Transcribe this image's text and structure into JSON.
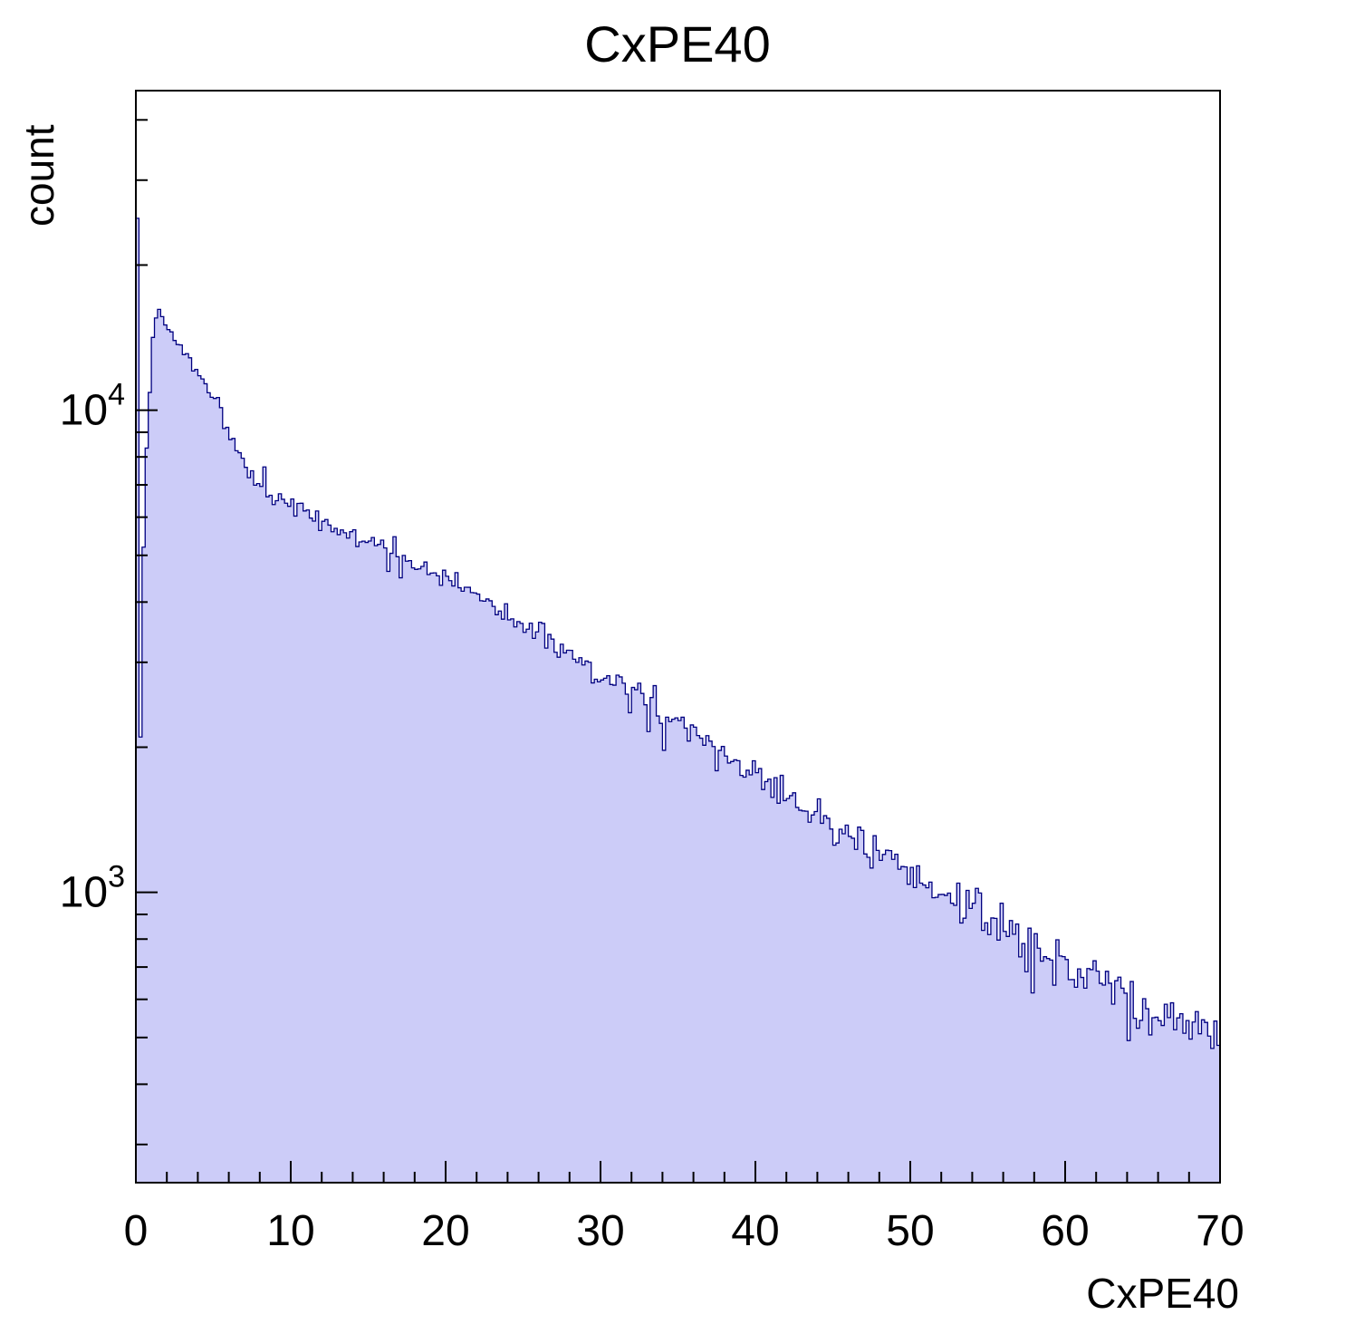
{
  "chart_data": {
    "type": "histogram",
    "title": "CxPE40",
    "xlabel": "CxPE40",
    "ylabel": "count",
    "xlim": [
      0,
      70
    ],
    "ylim": [
      250,
      46000
    ],
    "yscale": "log",
    "n_bins": 350,
    "bin_width": 0.2,
    "x_ticks": [
      0,
      10,
      20,
      30,
      40,
      50,
      60,
      70
    ],
    "x_minor_step": 2,
    "y_tick_base": "10",
    "y_major_ticks_exp": [
      3,
      4
    ],
    "fill_color": "#ccccf8",
    "line_color": "#000080",
    "frame_color": "#000000",
    "noise_coeff": 1.6,
    "noise_seed": 42,
    "anchors": [
      [
        0.1,
        25000
      ],
      [
        0.3,
        2100
      ],
      [
        0.5,
        5200
      ],
      [
        0.7,
        8200
      ],
      [
        0.9,
        11000
      ],
      [
        1.1,
        14000
      ],
      [
        1.4,
        16500
      ],
      [
        1.7,
        15800
      ],
      [
        2.0,
        15000
      ],
      [
        2.5,
        14200
      ],
      [
        3.0,
        13400
      ],
      [
        3.5,
        12700
      ],
      [
        4.0,
        11900
      ],
      [
        4.5,
        11200
      ],
      [
        5.0,
        10400
      ],
      [
        5.5,
        10050
      ],
      [
        6.0,
        9000
      ],
      [
        6.5,
        8300
      ],
      [
        7.0,
        7800
      ],
      [
        7.5,
        7300
      ],
      [
        8.0,
        7000
      ],
      [
        9.0,
        6600
      ],
      [
        10,
        6300
      ],
      [
        11,
        6100
      ],
      [
        12,
        5900
      ],
      [
        13,
        5700
      ],
      [
        14,
        5500
      ],
      [
        15,
        5300
      ],
      [
        16,
        5100
      ],
      [
        17,
        4950
      ],
      [
        18,
        4800
      ],
      [
        19,
        4650
      ],
      [
        20,
        4500
      ],
      [
        21,
        4350
      ],
      [
        22,
        4150
      ],
      [
        23,
        3950
      ],
      [
        24,
        3750
      ],
      [
        25,
        3550
      ],
      [
        26,
        3400
      ],
      [
        27,
        3250
      ],
      [
        28,
        3100
      ],
      [
        29,
        2950
      ],
      [
        30,
        2800
      ],
      [
        31,
        2700
      ],
      [
        32,
        2600
      ],
      [
        33,
        2500
      ],
      [
        34,
        2380
      ],
      [
        35,
        2250
      ],
      [
        36,
        2130
      ],
      [
        37,
        2030
      ],
      [
        38,
        1930
      ],
      [
        39,
        1840
      ],
      [
        40,
        1750
      ],
      [
        41,
        1670
      ],
      [
        42,
        1590
      ],
      [
        43,
        1510
      ],
      [
        44,
        1440
      ],
      [
        45,
        1370
      ],
      [
        46,
        1300
      ],
      [
        47,
        1250
      ],
      [
        48,
        1190
      ],
      [
        49,
        1140
      ],
      [
        50,
        1090
      ],
      [
        51,
        1040
      ],
      [
        52,
        1000
      ],
      [
        53,
        955
      ],
      [
        54,
        915
      ],
      [
        55,
        875
      ],
      [
        56,
        840
      ],
      [
        57,
        805
      ],
      [
        58,
        775
      ],
      [
        59,
        745
      ],
      [
        60,
        715
      ],
      [
        61,
        685
      ],
      [
        62,
        660
      ],
      [
        63,
        635
      ],
      [
        64,
        610
      ],
      [
        65,
        585
      ],
      [
        66,
        565
      ],
      [
        67,
        545
      ],
      [
        68,
        525
      ],
      [
        69,
        510
      ],
      [
        70,
        495
      ]
    ],
    "spikes": [
      {
        "x": 5.3,
        "f": 1.06
      },
      {
        "x": 5.7,
        "f": 0.95
      },
      {
        "x": 8.3,
        "f": 1.1
      },
      {
        "x": 16.3,
        "f": 0.9
      },
      {
        "x": 16.7,
        "f": 1.08
      },
      {
        "x": 17.1,
        "f": 0.88
      },
      {
        "x": 31.9,
        "f": 0.88
      },
      {
        "x": 32.5,
        "f": 1.1
      },
      {
        "x": 33.1,
        "f": 0.82
      },
      {
        "x": 33.5,
        "f": 1.08
      },
      {
        "x": 34.1,
        "f": 0.86
      },
      {
        "x": 43.5,
        "f": 0.88
      },
      {
        "x": 53.3,
        "f": 0.85
      },
      {
        "x": 57.9,
        "f": 0.85
      },
      {
        "x": 63.5,
        "f": 1.08
      },
      {
        "x": 64.1,
        "f": 0.85
      }
    ]
  }
}
